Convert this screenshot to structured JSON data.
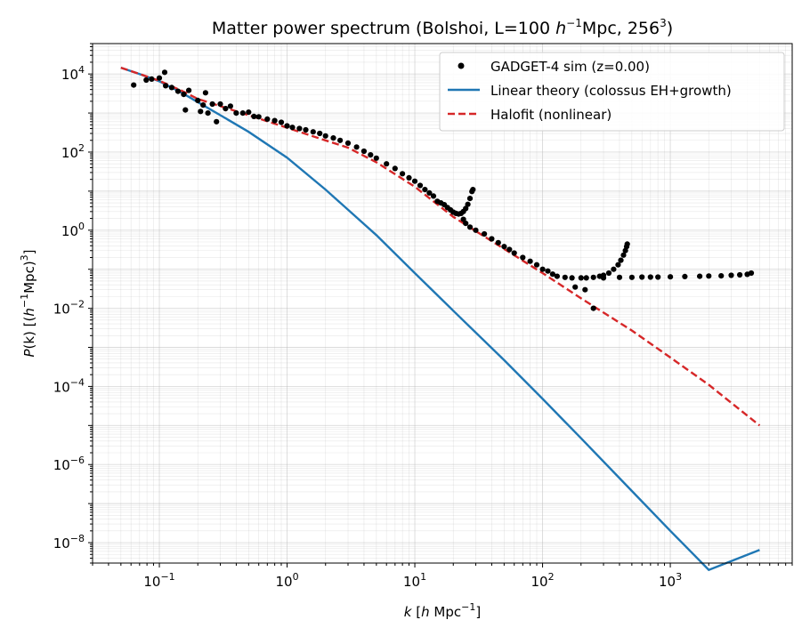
{
  "chart_data": {
    "type": "line",
    "title": "Matter power spectrum  (Bolshoi, L=100 h⁻¹Mpc, 256³)",
    "title_parts": {
      "pre": "Matter power spectrum  (Bolshoi, L=100 ",
      "h": "h",
      "exp1": "−1",
      "mid": "Mpc, 256",
      "exp2": "3",
      "post": ")"
    },
    "xlabel": "k [h Mpc⁻¹]",
    "xlabel_parts": {
      "k": "k",
      "open": " [",
      "h": "h",
      "unit": " Mpc",
      "exp": "−1",
      "close": "]"
    },
    "ylabel": "P(k) [(h⁻¹Mpc)³]",
    "ylabel_parts": {
      "p": "P",
      "k": "(k) [(",
      "h": "h",
      "exp": "−1",
      "unit": "Mpc)",
      "exp3": "3",
      "close": "]"
    },
    "x_scale": "log",
    "y_scale": "log",
    "xlim": [
      0.03,
      9000
    ],
    "ylim": [
      3e-09,
      60000.0
    ],
    "x_ticks": [
      {
        "value": 0.1,
        "base": "10",
        "exp": "−1"
      },
      {
        "value": 1,
        "base": "10",
        "exp": "0"
      },
      {
        "value": 10,
        "base": "10",
        "exp": "1"
      },
      {
        "value": 100,
        "base": "10",
        "exp": "2"
      },
      {
        "value": 1000,
        "base": "10",
        "exp": "3"
      }
    ],
    "y_ticks": [
      {
        "value": 1e-08,
        "base": "10",
        "exp": "−8"
      },
      {
        "value": 1e-06,
        "base": "10",
        "exp": "−6"
      },
      {
        "value": 0.0001,
        "base": "10",
        "exp": "−4"
      },
      {
        "value": 0.01,
        "base": "10",
        "exp": "−2"
      },
      {
        "value": 1,
        "base": "10",
        "exp": "0"
      },
      {
        "value": 100,
        "base": "10",
        "exp": "2"
      },
      {
        "value": 10000,
        "base": "10",
        "exp": "4"
      }
    ],
    "grid": true,
    "legend_position": "top-right",
    "series": [
      {
        "name": "GADGET-4 sim (z=0.00)",
        "kind": "scatter",
        "color": "#000000",
        "points": [
          [
            0.063,
            5200
          ],
          [
            0.079,
            7000
          ],
          [
            0.087,
            7400
          ],
          [
            0.1,
            7900
          ],
          [
            0.11,
            11000
          ],
          [
            0.112,
            5000
          ],
          [
            0.125,
            4500
          ],
          [
            0.14,
            3600
          ],
          [
            0.155,
            3000
          ],
          [
            0.16,
            1200
          ],
          [
            0.17,
            3800
          ],
          [
            0.2,
            2100
          ],
          [
            0.21,
            1100
          ],
          [
            0.22,
            1600
          ],
          [
            0.23,
            3300
          ],
          [
            0.24,
            1000
          ],
          [
            0.26,
            1700
          ],
          [
            0.28,
            600
          ],
          [
            0.3,
            1700
          ],
          [
            0.33,
            1300
          ],
          [
            0.36,
            1500
          ],
          [
            0.4,
            1000
          ],
          [
            0.45,
            1000
          ],
          [
            0.5,
            1050
          ],
          [
            0.55,
            820
          ],
          [
            0.6,
            800
          ],
          [
            0.7,
            700
          ],
          [
            0.8,
            640
          ],
          [
            0.9,
            580
          ],
          [
            1.0,
            470
          ],
          [
            1.1,
            430
          ],
          [
            1.25,
            400
          ],
          [
            1.4,
            370
          ],
          [
            1.6,
            330
          ],
          [
            1.8,
            300
          ],
          [
            2.0,
            260
          ],
          [
            2.3,
            230
          ],
          [
            2.6,
            200
          ],
          [
            3.0,
            170
          ],
          [
            3.5,
            135
          ],
          [
            4.0,
            105
          ],
          [
            4.5,
            85
          ],
          [
            5.0,
            70
          ],
          [
            6.0,
            50
          ],
          [
            7.0,
            38
          ],
          [
            8.0,
            28
          ],
          [
            9.0,
            22
          ],
          [
            10,
            18
          ],
          [
            11,
            14
          ],
          [
            12,
            11
          ],
          [
            13,
            9
          ],
          [
            14,
            7.5
          ],
          [
            15,
            5.5
          ],
          [
            16,
            5.0
          ],
          [
            17,
            4.5
          ],
          [
            18,
            3.8
          ],
          [
            19,
            3.3
          ],
          [
            20,
            2.9
          ],
          [
            21,
            2.7
          ],
          [
            22,
            2.6
          ],
          [
            23,
            2.7
          ],
          [
            24,
            3.0
          ],
          [
            25,
            3.6
          ],
          [
            26,
            4.6
          ],
          [
            27,
            6.5
          ],
          [
            28,
            9.8
          ],
          [
            28.5,
            11
          ],
          [
            24,
            1.9
          ],
          [
            25,
            1.5
          ],
          [
            27,
            1.2
          ],
          [
            30,
            1.0
          ],
          [
            35,
            0.8
          ],
          [
            40,
            0.6
          ],
          [
            45,
            0.48
          ],
          [
            50,
            0.38
          ],
          [
            55,
            0.32
          ],
          [
            60,
            0.26
          ],
          [
            70,
            0.2
          ],
          [
            80,
            0.16
          ],
          [
            90,
            0.13
          ],
          [
            100,
            0.1
          ],
          [
            110,
            0.09
          ],
          [
            120,
            0.075
          ],
          [
            130,
            0.066
          ],
          [
            150,
            0.062
          ],
          [
            170,
            0.06
          ],
          [
            200,
            0.06
          ],
          [
            220,
            0.06
          ],
          [
            250,
            0.062
          ],
          [
            280,
            0.066
          ],
          [
            300,
            0.07
          ],
          [
            330,
            0.08
          ],
          [
            360,
            0.1
          ],
          [
            390,
            0.13
          ],
          [
            410,
            0.17
          ],
          [
            430,
            0.23
          ],
          [
            445,
            0.3
          ],
          [
            455,
            0.38
          ],
          [
            460,
            0.44
          ],
          [
            180,
            0.035
          ],
          [
            215,
            0.03
          ],
          [
            250,
            0.01
          ],
          [
            300,
            0.06
          ],
          [
            400,
            0.062
          ],
          [
            500,
            0.062
          ],
          [
            600,
            0.063
          ],
          [
            700,
            0.063
          ],
          [
            800,
            0.063
          ],
          [
            1000,
            0.064
          ],
          [
            1300,
            0.065
          ],
          [
            1700,
            0.066
          ],
          [
            2000,
            0.067
          ],
          [
            2500,
            0.068
          ],
          [
            3000,
            0.07
          ],
          [
            3500,
            0.072
          ],
          [
            4000,
            0.074
          ],
          [
            4300,
            0.08
          ]
        ]
      },
      {
        "name": "Linear theory (colossus EH+growth)",
        "kind": "line",
        "color": "#1f77b4",
        "style": "solid",
        "points": [
          [
            0.05,
            14500
          ],
          [
            0.07,
            10000
          ],
          [
            0.1,
            6500
          ],
          [
            0.15,
            3300
          ],
          [
            0.2,
            1900
          ],
          [
            0.3,
            880
          ],
          [
            0.5,
            330
          ],
          [
            1,
            72
          ],
          [
            2,
            11
          ],
          [
            5,
            0.75
          ],
          [
            10,
            0.08
          ],
          [
            20,
            0.0087
          ],
          [
            50,
            0.00047
          ],
          [
            100,
            4.8e-05
          ],
          [
            200,
            4.7e-06
          ],
          [
            500,
            2.1e-07
          ],
          [
            1000,
            2e-08
          ],
          [
            2000,
            2e-09
          ],
          [
            5000,
            6.5e-09
          ]
        ]
      },
      {
        "name": "Halofit (nonlinear)",
        "kind": "line",
        "color": "#d62728",
        "style": "dashed",
        "points": [
          [
            0.05,
            14500
          ],
          [
            0.07,
            10000
          ],
          [
            0.1,
            6700
          ],
          [
            0.15,
            3700
          ],
          [
            0.2,
            2300
          ],
          [
            0.3,
            1500
          ],
          [
            0.5,
            880
          ],
          [
            1,
            420
          ],
          [
            2,
            200
          ],
          [
            3,
            130
          ],
          [
            5,
            55
          ],
          [
            10,
            13
          ],
          [
            20,
            2.2
          ],
          [
            50,
            0.33
          ],
          [
            100,
            0.08
          ],
          [
            200,
            0.018
          ],
          [
            500,
            0.0027
          ],
          [
            1000,
            0.00055
          ],
          [
            2000,
            0.00011
          ],
          [
            5000,
            1e-05
          ]
        ]
      }
    ]
  }
}
